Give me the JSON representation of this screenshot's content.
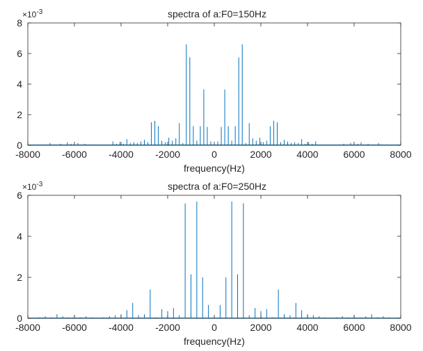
{
  "figure": {
    "background": "#ffffff",
    "axes_color": "#262626",
    "line_color": "#0072bd"
  },
  "chart_data": [
    {
      "type": "line",
      "title": "spectra of a:F0=150Hz",
      "xlabel": "frequency(Hz)",
      "ylabel": "",
      "exponent_label": "×10",
      "exponent_power": "-3",
      "xlim": [
        -8000,
        8000
      ],
      "ylim": [
        0,
        8
      ],
      "xticks": [
        -8000,
        -6000,
        -4000,
        -2000,
        0,
        2000,
        4000,
        6000,
        8000
      ],
      "yticks": [
        0,
        2,
        4,
        6,
        8
      ],
      "grid": false,
      "series": [
        {
          "x": [
            -7200,
            -7050,
            -6900,
            -6600,
            -6450,
            -6300,
            -6150,
            -6000,
            -5850,
            -5700,
            -5550,
            -5400,
            -4350,
            -4200,
            -4050,
            -3900,
            -3750,
            -3600,
            -3450,
            -3300,
            -3150,
            -3000,
            -2850,
            -2700,
            -2550,
            -2400,
            -2250,
            -2100,
            -1950,
            -1800,
            -1650,
            -1500,
            -1350,
            -1200,
            -1050,
            -900,
            -750,
            -600,
            -450,
            -300,
            -150,
            150,
            300,
            450,
            600,
            750,
            900,
            1050,
            1200,
            1350,
            1500,
            1650,
            1800,
            1950,
            2100,
            2250,
            2400,
            2550,
            2700,
            2850,
            3000,
            3150,
            3300,
            3450,
            3600,
            3750,
            3900,
            4050,
            4200,
            4350,
            5400,
            5550,
            5700,
            5850,
            6000,
            6150,
            6300,
            6450,
            6600,
            6900,
            7050,
            7200
          ],
          "y": [
            0.05,
            0.15,
            0.05,
            0.1,
            0.05,
            0.2,
            0.1,
            0.05,
            0.15,
            0.05,
            0.1,
            0.05,
            0.25,
            0.1,
            0.2,
            0.1,
            0.4,
            0.15,
            0.2,
            0.15,
            0.25,
            0.35,
            0.2,
            1.5,
            1.6,
            1.25,
            0.3,
            0.2,
            0.5,
            0.3,
            0.45,
            1.45,
            0.15,
            6.6,
            5.75,
            1.25,
            0.3,
            1.25,
            3.65,
            1.2,
            0.25,
            0.25,
            1.2,
            3.65,
            1.25,
            0.3,
            1.25,
            5.75,
            6.6,
            0.15,
            1.45,
            0.45,
            0.3,
            0.5,
            0.2,
            0.3,
            1.25,
            1.6,
            1.5,
            0.2,
            0.35,
            0.25,
            0.15,
            0.2,
            0.15,
            0.4,
            0.1,
            0.2,
            0.1,
            0.25,
            0.05,
            0.1,
            0.05,
            0.15,
            0.05,
            0.1,
            0.2,
            0.05,
            0.1,
            0.05,
            0.15,
            0.05
          ]
        }
      ]
    },
    {
      "type": "line",
      "title": "spectra of a:F0=250Hz",
      "xlabel": "frequency(Hz)",
      "ylabel": "",
      "exponent_label": "×10",
      "exponent_power": "-3",
      "xlim": [
        -8000,
        8000
      ],
      "ylim": [
        0,
        6
      ],
      "xticks": [
        -8000,
        -6000,
        -4000,
        -2000,
        0,
        2000,
        4000,
        6000,
        8000
      ],
      "yticks": [
        0,
        2,
        4,
        6
      ],
      "grid": false,
      "series": [
        {
          "x": [
            -7500,
            -7250,
            -7000,
            -6750,
            -6500,
            -6250,
            -6000,
            -5750,
            -5500,
            -5250,
            -4750,
            -4500,
            -4250,
            -4000,
            -3750,
            -3500,
            -3250,
            -3000,
            -2750,
            -2500,
            -2250,
            -2000,
            -1750,
            -1500,
            -1250,
            -1000,
            -750,
            -500,
            -250,
            250,
            500,
            750,
            1000,
            1250,
            1500,
            1750,
            2000,
            2250,
            2500,
            2750,
            3000,
            3250,
            3500,
            3750,
            4000,
            4250,
            4500,
            4750,
            5250,
            5500,
            5750,
            6000,
            6250,
            6500,
            6750,
            7000,
            7250,
            7500
          ],
          "y": [
            0.05,
            0.1,
            0.05,
            0.2,
            0.1,
            0.05,
            0.15,
            0.05,
            0.1,
            0.05,
            0.05,
            0.1,
            0.15,
            0.2,
            0.4,
            0.75,
            0.15,
            0.2,
            1.4,
            0.05,
            0.45,
            0.35,
            0.5,
            0.15,
            5.6,
            2.15,
            5.7,
            2.0,
            0.65,
            0.65,
            2.0,
            5.7,
            2.15,
            5.6,
            0.15,
            0.5,
            0.35,
            0.45,
            0.05,
            1.4,
            0.2,
            0.15,
            0.75,
            0.4,
            0.2,
            0.15,
            0.1,
            0.05,
            0.05,
            0.1,
            0.05,
            0.15,
            0.05,
            0.1,
            0.2,
            0.05,
            0.1,
            0.05
          ]
        }
      ]
    }
  ]
}
